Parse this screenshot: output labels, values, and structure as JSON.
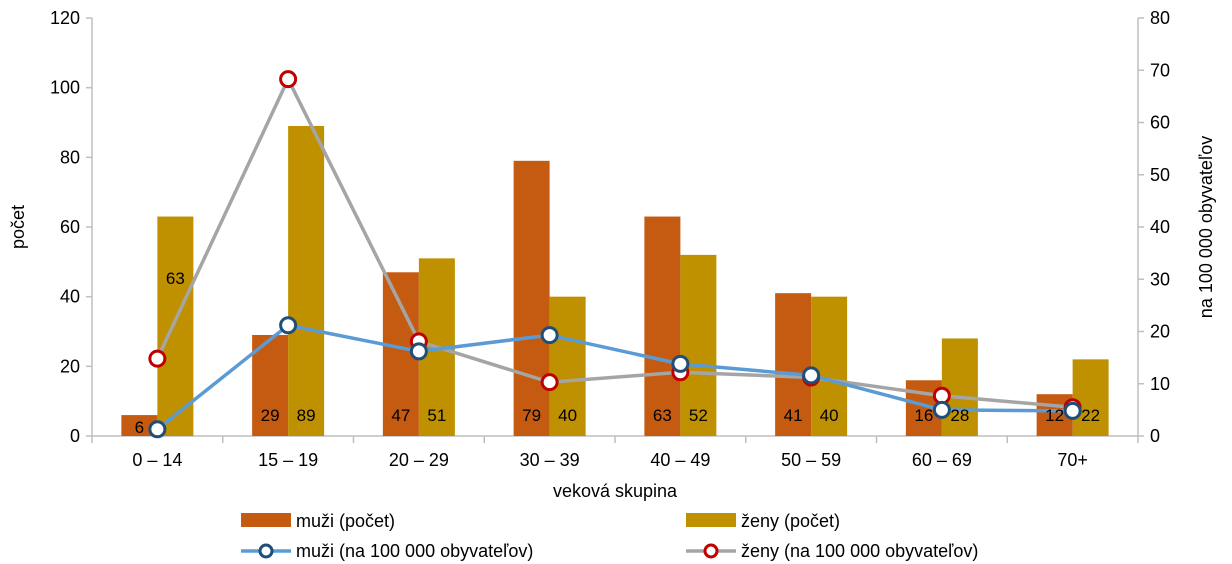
{
  "chart_data": {
    "type": "bar",
    "categories": [
      "0 – 14",
      "15 – 19",
      "20 – 29",
      "30 – 39",
      "40 – 49",
      "50 – 59",
      "60 – 69",
      "70+"
    ],
    "series": [
      {
        "name": "muži (počet)",
        "kind": "bar",
        "axis": "left",
        "color": "#c55a11",
        "values": [
          6,
          29,
          47,
          79,
          63,
          41,
          16,
          12
        ]
      },
      {
        "name": "ženy (počet)",
        "kind": "bar",
        "axis": "left",
        "color": "#bf9000",
        "values": [
          63,
          89,
          51,
          40,
          52,
          40,
          28,
          22
        ]
      },
      {
        "name": "muži (na 100 000 obyvateľov)",
        "kind": "line",
        "axis": "right",
        "color": "#5b9bd5",
        "marker_color": "#1f4e79",
        "values": [
          1.3,
          21.2,
          16.2,
          19.3,
          13.8,
          11.6,
          5.0,
          4.8
        ]
      },
      {
        "name": "ženy (na 100 000 obyvateľov)",
        "kind": "line",
        "axis": "right",
        "color": "#a5a5a5",
        "marker_color": "#c00000",
        "values": [
          14.8,
          68.3,
          18.1,
          10.3,
          12.2,
          11.2,
          7.7,
          5.5
        ]
      }
    ],
    "data_labels": [
      [
        "6",
        "63"
      ],
      [
        "29",
        "89"
      ],
      [
        "47",
        "51"
      ],
      [
        "79",
        "40"
      ],
      [
        "63",
        "52"
      ],
      [
        "41",
        "40"
      ],
      [
        "16",
        "28"
      ],
      [
        "12",
        "22"
      ]
    ],
    "xlabel": "veková skupina",
    "ylabel": "počet",
    "y2label": "na 100 000 obyvateľov",
    "ylim": [
      0,
      120
    ],
    "y2lim": [
      0,
      80
    ],
    "yticks": [
      "0",
      "20",
      "40",
      "60",
      "80",
      "100",
      "120"
    ],
    "y2ticks": [
      "0",
      "10",
      "20",
      "30",
      "40",
      "50",
      "60",
      "70",
      "80"
    ],
    "grid": false,
    "legend_position": "bottom"
  }
}
